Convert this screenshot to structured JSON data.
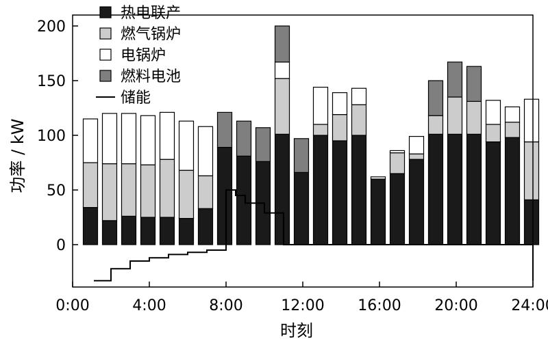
{
  "chart_data": {
    "type": "bar",
    "stacked": true,
    "x_hours": [
      1,
      2,
      3,
      4,
      5,
      6,
      7,
      8,
      9,
      10,
      11,
      12,
      13,
      14,
      15,
      16,
      17,
      18,
      19,
      20,
      21,
      22,
      23,
      24
    ],
    "x_ticks": [
      {
        "hour": 0,
        "label": "0:00"
      },
      {
        "hour": 4,
        "label": "4:00"
      },
      {
        "hour": 8,
        "label": "8:00"
      },
      {
        "hour": 12,
        "label": "12:00"
      },
      {
        "hour": 16,
        "label": "16:00"
      },
      {
        "hour": 20,
        "label": "20:00"
      },
      {
        "hour": 24,
        "label": "24:00"
      }
    ],
    "xlim": [
      0,
      24
    ],
    "ylim": [
      -40,
      200
    ],
    "y_ticks": [
      0,
      50,
      100,
      150,
      200
    ],
    "xlabel": "时刻",
    "ylabel": "功率 / kW",
    "legend_position": "top-left",
    "series": [
      {
        "name": "热电联产",
        "color": "#1a1a1a",
        "values": [
          34,
          22,
          26,
          25,
          25,
          24,
          33,
          89,
          81,
          76,
          101,
          66,
          100,
          95,
          100,
          60,
          65,
          78,
          101,
          101,
          101,
          94,
          98,
          41
        ]
      },
      {
        "name": "燃气锅炉",
        "color": "#cccccc",
        "values": [
          41,
          52,
          48,
          48,
          53,
          44,
          30,
          0,
          0,
          0,
          51,
          0,
          10,
          24,
          28,
          0,
          19,
          5,
          17,
          34,
          30,
          16,
          14,
          53
        ]
      },
      {
        "name": "电锅炉",
        "color": "#ffffff",
        "values": [
          40,
          46,
          46,
          45,
          43,
          45,
          45,
          0,
          0,
          0,
          15,
          0,
          34,
          20,
          15,
          2,
          2,
          16,
          0,
          0,
          0,
          22,
          14,
          39
        ]
      },
      {
        "name": "燃料电池",
        "color": "#7f7f7f",
        "values": [
          0,
          0,
          0,
          0,
          0,
          0,
          0,
          32,
          32,
          31,
          33,
          31,
          0,
          0,
          0,
          0,
          0,
          0,
          32,
          32,
          32,
          0,
          0,
          0
        ]
      }
    ],
    "storage": {
      "name": "储能",
      "color": "#000000",
      "steps": [
        {
          "start": 1.0,
          "end": 2.0,
          "value": -33
        },
        {
          "start": 2.0,
          "end": 3.0,
          "value": -22
        },
        {
          "start": 3.0,
          "end": 4.0,
          "value": -15
        },
        {
          "start": 4.0,
          "end": 5.0,
          "value": -12
        },
        {
          "start": 5.0,
          "end": 6.0,
          "value": -9
        },
        {
          "start": 6.0,
          "end": 7.0,
          "value": -7
        },
        {
          "start": 7.0,
          "end": 8.0,
          "value": -5
        },
        {
          "start": 8.0,
          "end": 8.5,
          "value": 50
        },
        {
          "start": 8.5,
          "end": 9.0,
          "value": 45
        },
        {
          "start": 9.0,
          "end": 10.0,
          "value": 38
        },
        {
          "start": 10.0,
          "end": 11.0,
          "value": 29
        },
        {
          "start": 11.0,
          "end": 24.0,
          "value": 0
        }
      ]
    }
  }
}
